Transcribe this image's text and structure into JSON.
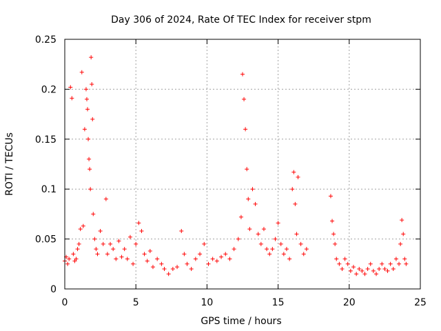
{
  "chart_data": {
    "type": "scatter",
    "title": "Day 306 of 2024, Rate Of TEC Index for receiver stpm",
    "xlabel": "GPS time / hours",
    "ylabel": "ROTI / TECUs",
    "xlim": [
      0,
      25
    ],
    "ylim": [
      0,
      0.25
    ],
    "xticks": [
      0,
      5,
      10,
      15,
      20,
      25
    ],
    "yticks": [
      0,
      0.05,
      0.1,
      0.15,
      0.2,
      0.25
    ],
    "xtick_labels": [
      "0",
      "5",
      "10",
      "15",
      "20",
      "25"
    ],
    "ytick_labels": [
      "0",
      "0.05",
      "0.1",
      "0.15",
      "0.2",
      "0.25"
    ],
    "grid": true,
    "marker": "+",
    "color": "#ff0000",
    "series": [
      {
        "name": "ROTI",
        "x": [
          0.0,
          0.1,
          0.2,
          0.3,
          0.4,
          0.5,
          0.6,
          0.7,
          0.8,
          0.9,
          1.0,
          1.1,
          1.2,
          1.3,
          1.4,
          1.5,
          1.55,
          1.6,
          1.65,
          1.7,
          1.75,
          1.8,
          1.85,
          1.9,
          1.95,
          2.0,
          2.1,
          2.2,
          2.3,
          2.5,
          2.7,
          2.9,
          3.0,
          3.2,
          3.4,
          3.6,
          3.8,
          4.0,
          4.2,
          4.4,
          4.6,
          4.8,
          5.0,
          5.2,
          5.4,
          5.6,
          5.8,
          6.0,
          6.2,
          6.5,
          6.8,
          7.0,
          7.3,
          7.6,
          7.9,
          8.2,
          8.4,
          8.6,
          8.9,
          9.2,
          9.5,
          9.8,
          10.1,
          10.4,
          10.7,
          11.0,
          11.3,
          11.6,
          11.9,
          12.2,
          12.4,
          12.5,
          12.6,
          12.7,
          12.8,
          12.9,
          13.0,
          13.2,
          13.4,
          13.6,
          13.8,
          14.0,
          14.2,
          14.4,
          14.6,
          14.8,
          15.0,
          15.2,
          15.4,
          15.6,
          15.8,
          16.0,
          16.1,
          16.2,
          16.3,
          16.4,
          16.6,
          16.8,
          17.0,
          18.7,
          18.8,
          18.9,
          19.0,
          19.1,
          19.3,
          19.5,
          19.7,
          19.9,
          20.1,
          20.3,
          20.5,
          20.7,
          20.9,
          21.1,
          21.3,
          21.5,
          21.7,
          21.9,
          22.1,
          22.3,
          22.5,
          22.7,
          22.9,
          23.1,
          23.3,
          23.5,
          23.6,
          23.7,
          23.8,
          23.9,
          24.0
        ],
        "y": [
          0.028,
          0.032,
          0.025,
          0.03,
          0.202,
          0.191,
          0.035,
          0.028,
          0.03,
          0.04,
          0.045,
          0.06,
          0.217,
          0.063,
          0.16,
          0.2,
          0.19,
          0.18,
          0.15,
          0.13,
          0.12,
          0.1,
          0.232,
          0.205,
          0.17,
          0.075,
          0.05,
          0.04,
          0.035,
          0.058,
          0.045,
          0.09,
          0.035,
          0.045,
          0.04,
          0.03,
          0.048,
          0.032,
          0.04,
          0.03,
          0.052,
          0.025,
          0.045,
          0.066,
          0.058,
          0.035,
          0.028,
          0.038,
          0.022,
          0.03,
          0.025,
          0.02,
          0.015,
          0.02,
          0.022,
          0.058,
          0.035,
          0.025,
          0.02,
          0.03,
          0.035,
          0.045,
          0.025,
          0.03,
          0.028,
          0.032,
          0.035,
          0.03,
          0.04,
          0.05,
          0.072,
          0.215,
          0.19,
          0.16,
          0.12,
          0.09,
          0.06,
          0.1,
          0.085,
          0.055,
          0.045,
          0.06,
          0.04,
          0.035,
          0.04,
          0.05,
          0.066,
          0.045,
          0.035,
          0.04,
          0.03,
          0.1,
          0.117,
          0.085,
          0.055,
          0.112,
          0.045,
          0.035,
          0.04,
          0.093,
          0.068,
          0.055,
          0.045,
          0.03,
          0.025,
          0.02,
          0.03,
          0.025,
          0.018,
          0.022,
          0.015,
          0.02,
          0.018,
          0.015,
          0.02,
          0.025,
          0.018,
          0.015,
          0.02,
          0.025,
          0.02,
          0.018,
          0.025,
          0.02,
          0.03,
          0.025,
          0.045,
          0.069,
          0.055,
          0.03,
          0.025
        ]
      }
    ]
  }
}
